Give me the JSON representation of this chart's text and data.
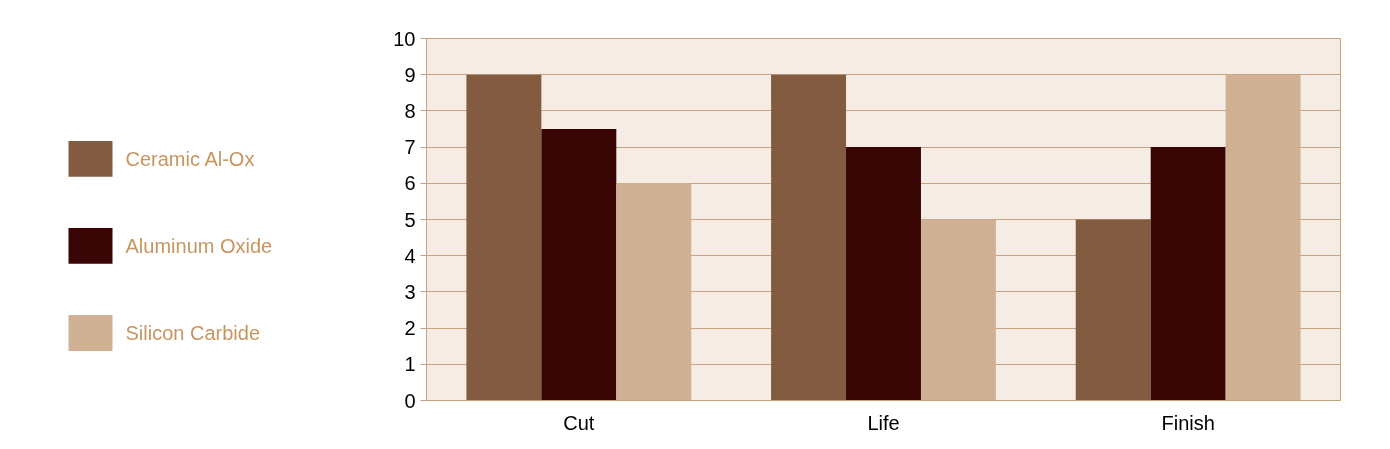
{
  "chart_data": {
    "type": "bar",
    "categories": [
      "Cut",
      "Life",
      "Finish"
    ],
    "series": [
      {
        "name": "Ceramic Al-Ox",
        "color": "#835b40",
        "values": [
          9,
          9,
          5
        ]
      },
      {
        "name": "Aluminum Oxide",
        "color": "#3a0505",
        "values": [
          7.5,
          7,
          7
        ]
      },
      {
        "name": "Silicon Carbide",
        "color": "#d1b193",
        "values": [
          6,
          5,
          9
        ]
      }
    ],
    "ylim": [
      0,
      10
    ],
    "yticks": [
      0,
      1,
      2,
      3,
      4,
      5,
      6,
      7,
      8,
      9,
      10
    ],
    "grid": "y",
    "legend": "left"
  }
}
